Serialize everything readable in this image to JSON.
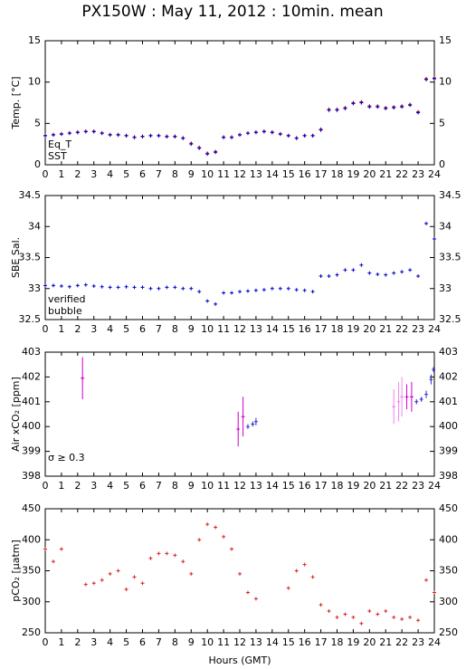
{
  "title": "PX150W : May 11, 2012 : 10min. mean",
  "xlabel": "Hours (GMT)",
  "chart_data": [
    {
      "type": "scatter",
      "ylabel": "Temp. [°C]",
      "xlim": [
        0,
        24
      ],
      "xticks": [
        0,
        1,
        2,
        3,
        4,
        5,
        6,
        7,
        8,
        9,
        10,
        11,
        12,
        13,
        14,
        15,
        16,
        17,
        18,
        19,
        20,
        21,
        22,
        23,
        24
      ],
      "ylim": [
        0,
        15
      ],
      "yticks": [
        0,
        5,
        10,
        15
      ],
      "x": [
        0,
        0.5,
        1,
        1.5,
        2,
        2.5,
        3,
        3.5,
        4,
        4.5,
        5,
        5.5,
        6,
        6.5,
        7,
        7.5,
        8,
        8.5,
        9,
        9.5,
        10,
        10.5,
        11,
        11.5,
        12,
        12.5,
        13,
        13.5,
        14,
        14.5,
        15,
        15.5,
        16,
        16.5,
        17,
        17.5,
        18,
        18.5,
        19,
        19.5,
        20,
        20.5,
        21,
        21.5,
        22,
        22.5,
        23,
        23.5,
        24
      ],
      "series": [
        {
          "name": "Eq_T",
          "color": "#cc0000",
          "values": [
            3.55,
            3.65,
            3.75,
            3.85,
            3.95,
            4.05,
            4.05,
            3.85,
            3.65,
            3.65,
            3.55,
            3.35,
            3.45,
            3.55,
            3.55,
            3.45,
            3.45,
            3.25,
            2.6,
            2.1,
            1.4,
            1.6,
            3.35,
            3.35,
            3.65,
            3.85,
            3.95,
            4.05,
            3.95,
            3.75,
            3.55,
            3.25,
            3.55,
            3.55,
            4.3,
            6.7,
            6.7,
            6.9,
            7.5,
            7.6,
            7.1,
            7.1,
            6.9,
            7.0,
            7.1,
            7.3,
            6.4,
            10.4,
            10.5
          ]
        },
        {
          "name": "SST",
          "color": "#0000cc",
          "values": [
            3.5,
            3.6,
            3.7,
            3.8,
            3.9,
            4.0,
            4.0,
            3.8,
            3.6,
            3.6,
            3.5,
            3.3,
            3.4,
            3.5,
            3.5,
            3.4,
            3.4,
            3.2,
            2.5,
            2.0,
            1.3,
            1.5,
            3.3,
            3.3,
            3.6,
            3.8,
            3.9,
            4.0,
            3.9,
            3.7,
            3.5,
            3.2,
            3.5,
            3.5,
            4.2,
            6.6,
            6.6,
            6.8,
            7.4,
            7.5,
            7.0,
            7.0,
            6.8,
            6.9,
            7.0,
            7.2,
            6.3,
            10.3,
            10.4
          ]
        }
      ]
    },
    {
      "type": "scatter",
      "ylabel": "SBE Sal.",
      "xlim": [
        0,
        24
      ],
      "xticks": [
        0,
        1,
        2,
        3,
        4,
        5,
        6,
        7,
        8,
        9,
        10,
        11,
        12,
        13,
        14,
        15,
        16,
        17,
        18,
        19,
        20,
        21,
        22,
        23,
        24
      ],
      "ylim": [
        32.5,
        34.5
      ],
      "yticks": [
        32.5,
        33,
        33.5,
        34,
        34.5
      ],
      "x": [
        0,
        0.5,
        1,
        1.5,
        2,
        2.5,
        3,
        3.5,
        4,
        4.5,
        5,
        5.5,
        6,
        6.5,
        7,
        7.5,
        8,
        8.5,
        9,
        9.5,
        10,
        10.5,
        11,
        11.5,
        12,
        12.5,
        13,
        13.5,
        14,
        14.5,
        15,
        15.5,
        16,
        16.5,
        17,
        17.5,
        18,
        18.5,
        19,
        19.5,
        20,
        20.5,
        21,
        21.5,
        22,
        22.5,
        23,
        23.5,
        24
      ],
      "series": [
        {
          "name": "verified",
          "color": "#0000cc",
          "values": [
            33.05,
            33.05,
            33.04,
            33.03,
            33.05,
            33.06,
            33.04,
            33.03,
            33.02,
            33.02,
            33.03,
            33.02,
            33.02,
            33.0,
            33.0,
            33.02,
            33.02,
            33.0,
            33.0,
            32.95,
            32.8,
            32.75,
            32.93,
            32.93,
            32.95,
            32.96,
            32.97,
            32.98,
            33.0,
            33.0,
            33.0,
            32.98,
            32.97,
            32.95,
            33.2,
            33.2,
            33.22,
            33.3,
            33.3,
            33.38,
            33.25,
            33.23,
            33.22,
            33.25,
            33.27,
            33.3,
            33.2,
            34.05,
            33.8
          ]
        },
        {
          "name": "bubble",
          "color": "#cc00cc",
          "values": [
            null,
            null,
            null,
            null,
            null,
            null,
            null,
            null,
            null,
            null,
            null,
            null,
            null,
            null,
            null,
            null,
            null,
            null,
            null,
            null,
            null,
            null,
            null,
            null,
            null,
            null,
            null,
            null,
            null,
            null,
            null,
            null,
            null,
            null,
            null,
            null,
            null,
            null,
            null,
            null,
            null,
            null,
            null,
            null,
            null,
            null,
            null,
            null,
            null
          ]
        }
      ]
    },
    {
      "type": "errorbar",
      "ylabel": "Air xCO₂ [ppm]",
      "xlim": [
        0,
        24
      ],
      "xticks": [
        0,
        1,
        2,
        3,
        4,
        5,
        6,
        7,
        8,
        9,
        10,
        11,
        12,
        13,
        14,
        15,
        16,
        17,
        18,
        19,
        20,
        21,
        22,
        23,
        24
      ],
      "ylim": [
        398,
        403
      ],
      "yticks": [
        398,
        399,
        400,
        401,
        402,
        403
      ],
      "annotation": "σ ≥ 0.3",
      "annotation_color": "#cc00cc",
      "x": [
        2.3,
        11.9,
        12.2,
        12.5,
        12.8,
        13.0,
        21.5,
        21.8,
        22.0,
        22.3,
        22.6,
        22.9,
        23.2,
        23.5,
        23.8,
        23.95
      ],
      "series": [
        {
          "color": "#3333cc",
          "values": [
            401.95,
            399.9,
            400.4,
            400.0,
            400.1,
            400.2,
            400.8,
            401.0,
            401.2,
            401.2,
            401.2,
            401.0,
            401.1,
            401.3,
            401.9,
            402.3
          ],
          "errors": [
            0.85,
            0.7,
            0.8,
            0.1,
            0.1,
            0.15,
            0.7,
            0.8,
            0.8,
            0.5,
            0.6,
            0.1,
            0.1,
            0.15,
            0.2,
            0.1
          ],
          "colors": [
            "#cc00cc",
            "#cc00cc",
            "#cc00cc",
            "#3333cc",
            "#3333cc",
            "#3333cc",
            "#ee88ee",
            "#ee88ee",
            "#ee88ee",
            "#cc00cc",
            "#cc00cc",
            "#3333cc",
            "#3333cc",
            "#3333cc",
            "#3333cc",
            "#3333cc"
          ]
        }
      ]
    },
    {
      "type": "scatter",
      "ylabel": "pCO₂ [µatm]",
      "xlim": [
        0,
        24
      ],
      "xticks": [
        0,
        1,
        2,
        3,
        4,
        5,
        6,
        7,
        8,
        9,
        10,
        11,
        12,
        13,
        14,
        15,
        16,
        17,
        18,
        19,
        20,
        21,
        22,
        23,
        24
      ],
      "ylim": [
        250,
        450
      ],
      "yticks": [
        250,
        300,
        350,
        400,
        450
      ],
      "x": [
        0,
        0.5,
        1,
        1.5,
        2,
        2.5,
        3,
        3.5,
        4,
        4.5,
        5,
        5.5,
        6,
        6.5,
        7,
        7.5,
        8,
        8.5,
        9,
        9.5,
        10,
        10.5,
        11,
        11.5,
        12,
        12.5,
        13,
        13.5,
        14,
        14.5,
        15,
        15.5,
        16,
        16.5,
        17,
        17.5,
        18,
        18.5,
        19,
        19.5,
        20,
        20.5,
        21,
        21.5,
        22,
        22.5,
        23,
        23.5,
        24
      ],
      "series": [
        {
          "color": "#dd2222",
          "values": [
            385,
            365,
            385,
            null,
            null,
            328,
            330,
            335,
            345,
            350,
            320,
            340,
            330,
            370,
            378,
            378,
            375,
            365,
            345,
            400,
            425,
            420,
            405,
            385,
            345,
            315,
            305,
            null,
            null,
            null,
            322,
            350,
            360,
            340,
            295,
            285,
            275,
            280,
            275,
            265,
            285,
            280,
            285,
            275,
            272,
            275,
            270,
            335,
            315
          ]
        }
      ]
    }
  ]
}
